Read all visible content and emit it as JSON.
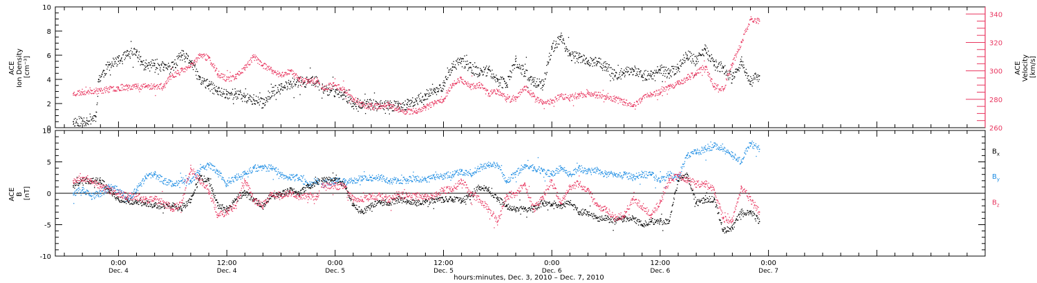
{
  "chart_data": [
    {
      "type": "scatter",
      "panel": "top",
      "ylabel_left": [
        "ACE",
        "Ion Density",
        "[cm⁻³]"
      ],
      "ylabel_right": [
        "ACE",
        "Velocity",
        "[km/s]"
      ],
      "ylim_left": [
        0,
        10
      ],
      "ylim_right": [
        260,
        345
      ],
      "yticks_left": [
        "0",
        "2",
        "4",
        "6",
        "8",
        "10"
      ],
      "yticks_right": [
        "260",
        "280",
        "300",
        "320",
        "340"
      ],
      "colors": {
        "density": "#000000",
        "velocity": "#e8345e"
      },
      "series": [
        {
          "key": "density",
          "axis": "left",
          "x": [
            -5,
            -3.5,
            -2.5,
            -2.2,
            -1,
            0,
            1,
            2,
            2.5,
            3,
            4,
            5,
            6,
            7,
            8,
            9,
            10,
            11,
            12,
            13,
            14,
            15,
            16,
            17,
            18,
            19,
            20,
            21,
            22,
            22.5,
            24,
            25,
            26,
            27,
            28,
            29,
            30,
            31,
            32,
            33,
            34,
            35,
            36,
            37,
            38,
            39,
            40,
            41,
            42,
            43,
            44,
            45,
            46,
            47,
            48,
            49,
            50,
            51,
            52,
            53,
            54,
            55,
            56,
            57,
            58,
            59,
            60,
            61,
            62,
            63,
            64,
            65,
            66,
            67,
            68,
            69,
            70,
            71
          ],
          "y": [
            0.5,
            0.6,
            0.9,
            4.0,
            5.2,
            5.5,
            6.0,
            6.3,
            5.5,
            5.0,
            5.3,
            5.0,
            5.0,
            6.0,
            5.5,
            4.0,
            3.5,
            3.0,
            2.8,
            2.8,
            2.5,
            2.3,
            2.0,
            3.0,
            3.2,
            3.6,
            3.8,
            3.8,
            3.8,
            3.2,
            3.0,
            2.7,
            2.0,
            2.0,
            1.9,
            1.8,
            1.8,
            1.8,
            1.9,
            2.2,
            2.7,
            3.0,
            3.5,
            5.0,
            5.5,
            5.0,
            4.5,
            4.8,
            4.0,
            3.5,
            5.5,
            4.5,
            3.8,
            3.5,
            6.5,
            7.5,
            6.0,
            5.8,
            5.5,
            5.5,
            5.0,
            4.3,
            4.5,
            4.8,
            4.3,
            4.3,
            4.8,
            4.5,
            5.0,
            6.0,
            5.5,
            6.5,
            5.2,
            5.0,
            4.0,
            5.5,
            3.8,
            4.3
          ]
        },
        {
          "key": "velocity",
          "axis": "right",
          "x": [
            -5,
            -4,
            -3,
            -2,
            -1,
            0,
            1,
            2,
            3,
            4,
            5,
            6,
            7,
            8,
            9,
            10,
            11,
            12,
            13,
            14,
            15,
            16,
            17,
            18,
            19,
            20,
            21,
            22,
            22.5,
            24,
            25,
            26,
            27,
            28,
            29,
            30,
            31,
            32,
            33,
            34,
            35,
            36,
            37,
            38,
            39,
            40,
            41,
            42,
            43,
            44,
            45,
            46,
            47,
            48,
            49,
            50,
            51,
            52,
            53,
            54,
            55,
            56,
            57,
            58,
            59,
            60,
            61,
            62,
            63,
            64,
            65,
            66,
            67,
            68,
            69,
            70,
            71
          ],
          "y": [
            284,
            285,
            286,
            286,
            287,
            288,
            289,
            289,
            289,
            289,
            289,
            297,
            300,
            303,
            311,
            309,
            298,
            294,
            296,
            302,
            310,
            304,
            300,
            297,
            300,
            294,
            293,
            293,
            288,
            290,
            287,
            280,
            276,
            275,
            275,
            276,
            273,
            271,
            272,
            274,
            277,
            280,
            291,
            294,
            289,
            290,
            284,
            286,
            280,
            280,
            289,
            282,
            277,
            279,
            282,
            281,
            283,
            284,
            283,
            282,
            280,
            278,
            276,
            280,
            284,
            285,
            289,
            291,
            295,
            298,
            303,
            289,
            287,
            305,
            320,
            336,
            335
          ]
        }
      ]
    },
    {
      "type": "scatter",
      "panel": "bottom",
      "ylabel": [
        "ACE",
        "B",
        "[nT]"
      ],
      "ylim": [
        -10,
        10
      ],
      "yticks": [
        "-10",
        "-5",
        "0",
        "5",
        "10"
      ],
      "zero_line": true,
      "legend": {
        "position": "right",
        "items": [
          {
            "key": "bx",
            "text": "B",
            "sub": "x"
          },
          {
            "key": "by",
            "text": "B",
            "sub": "y"
          },
          {
            "key": "bz",
            "text": "B",
            "sub": "z"
          }
        ]
      },
      "colors": {
        "bx": "#000000",
        "by": "#1c8ce3",
        "bz": "#e8345e"
      },
      "series": [
        {
          "key": "bx",
          "x": [
            -5,
            -4,
            -3,
            -2,
            -1,
            0,
            1,
            2,
            3,
            4,
            5,
            6,
            7,
            8,
            9,
            10,
            11,
            12,
            13,
            14,
            15,
            16,
            17,
            18,
            19,
            20,
            21,
            22,
            22.5,
            24,
            25,
            26,
            27,
            28,
            29,
            30,
            31,
            32,
            33,
            34,
            35,
            36,
            37,
            38,
            39,
            40,
            41,
            42,
            43,
            44,
            45,
            46,
            47,
            48,
            49,
            50,
            51,
            52,
            53,
            54,
            55,
            56,
            57,
            58,
            59,
            60,
            61,
            62,
            63,
            64,
            65,
            66,
            67,
            68,
            69,
            70,
            71
          ],
          "y": [
            1.2,
            2.0,
            2.0,
            2.0,
            0.5,
            -1.0,
            -1.2,
            -1.5,
            -1.5,
            -2.0,
            -2.0,
            -2.0,
            -2.5,
            -1.0,
            2.5,
            2.0,
            -2.0,
            -2.5,
            -1.0,
            0.0,
            -1.0,
            -2.0,
            -0.5,
            -0.2,
            0.5,
            0.0,
            1.0,
            1.8,
            2.0,
            2.2,
            1.5,
            -2.0,
            -3.0,
            -2.0,
            -1.5,
            -1.5,
            -1.0,
            -1.2,
            -1.5,
            -1.5,
            -1.0,
            -1.0,
            -1.0,
            -1.2,
            -0.5,
            1.0,
            0.5,
            -1.0,
            -2.0,
            -2.5,
            -2.5,
            -2.5,
            -1.5,
            -2.0,
            -2.0,
            -1.5,
            -3.0,
            -3.0,
            -4.0,
            -4.0,
            -4.5,
            -4.0,
            -4.0,
            -5.0,
            -4.5,
            -4.5,
            -4.5,
            2.0,
            3.0,
            -1.5,
            -1.0,
            -1.0,
            -6.0,
            -5.5,
            -3.0,
            -3.0,
            -4.5
          ]
        },
        {
          "key": "by",
          "x": [
            -5,
            -4,
            -3,
            -2,
            -1,
            0,
            1,
            2,
            3,
            4,
            5,
            6,
            7,
            8,
            9,
            10,
            11,
            12,
            13,
            14,
            15,
            16,
            17,
            18,
            19,
            20,
            21,
            22,
            22.5,
            24,
            25,
            26,
            27,
            28,
            29,
            30,
            31,
            32,
            33,
            34,
            35,
            36,
            37,
            38,
            39,
            40,
            41,
            42,
            43,
            44,
            45,
            46,
            47,
            48,
            49,
            50,
            51,
            52,
            53,
            54,
            55,
            56,
            57,
            58,
            59,
            60,
            61,
            62,
            63,
            64,
            65,
            66,
            67,
            68,
            69,
            70,
            71
          ],
          "y": [
            0.0,
            0.5,
            -0.5,
            0.0,
            1.0,
            0.5,
            -1.0,
            0.5,
            2.5,
            3.0,
            2.0,
            1.5,
            2.0,
            2.0,
            3.5,
            4.5,
            3.5,
            1.5,
            2.5,
            3.0,
            4.0,
            4.0,
            4.0,
            3.0,
            2.5,
            2.5,
            1.5,
            2.0,
            1.5,
            2.0,
            1.8,
            2.0,
            2.5,
            2.5,
            2.5,
            2.0,
            2.0,
            2.0,
            2.3,
            2.2,
            2.5,
            2.8,
            3.0,
            3.5,
            3.0,
            4.0,
            4.5,
            4.5,
            2.0,
            3.0,
            4.5,
            4.0,
            3.5,
            3.0,
            4.0,
            3.0,
            4.0,
            3.5,
            3.5,
            3.0,
            3.0,
            3.0,
            2.5,
            3.0,
            3.0,
            2.0,
            3.0,
            2.5,
            6.0,
            6.5,
            7.0,
            7.5,
            7.0,
            6.0,
            5.0,
            8.0,
            7.0
          ]
        },
        {
          "key": "bz",
          "x": [
            -5,
            -4,
            -3,
            -2,
            -1,
            0,
            1,
            2,
            3,
            4,
            5,
            6,
            7,
            8,
            9,
            10,
            11,
            12,
            13,
            14,
            15,
            16,
            17,
            18,
            19,
            20,
            21,
            22,
            22.5,
            24,
            25,
            26,
            27,
            28,
            29,
            30,
            31,
            32,
            33,
            34,
            35,
            36,
            37,
            38,
            39,
            40,
            41,
            42,
            43,
            44,
            45,
            46,
            47,
            48,
            49,
            50,
            51,
            52,
            53,
            54,
            55,
            56,
            57,
            58,
            59,
            60,
            61,
            62,
            63,
            64,
            65,
            66,
            67,
            68,
            69,
            70,
            71
          ],
          "y": [
            2.0,
            2.5,
            2.0,
            1.0,
            0.5,
            0.0,
            -0.5,
            -0.5,
            -1.0,
            -1.0,
            -1.5,
            -2.5,
            -1.5,
            4.0,
            2.0,
            0.5,
            -3.5,
            -3.0,
            -2.0,
            2.0,
            -1.0,
            -2.0,
            0.0,
            -0.5,
            0.0,
            -0.5,
            -0.5,
            -0.5,
            1.0,
            1.2,
            1.0,
            -1.0,
            -1.0,
            -0.5,
            -0.5,
            -1.0,
            -0.2,
            -0.5,
            -0.5,
            -0.5,
            -0.5,
            0.5,
            0.5,
            2.0,
            0.0,
            -1.0,
            -2.5,
            -4.5,
            -0.5,
            0.0,
            1.5,
            -2.5,
            -0.5,
            2.0,
            -1.5,
            1.0,
            1.5,
            0.5,
            -2.0,
            -2.5,
            -4.0,
            -3.5,
            -1.0,
            -2.0,
            -3.5,
            -1.5,
            2.0,
            3.0,
            2.0,
            1.5,
            1.5,
            0.5,
            -4.0,
            -4.5,
            1.0,
            -1.0,
            -3.0
          ]
        }
      ]
    }
  ],
  "x_axis": {
    "range_hours": [
      -7,
      96
    ],
    "ticks": [
      {
        "t": 0,
        "time": "0:00",
        "date": "Dec. 4"
      },
      {
        "t": 12,
        "time": "12:00",
        "date": "Dec. 4"
      },
      {
        "t": 24,
        "time": "0:00",
        "date": "Dec. 5"
      },
      {
        "t": 36,
        "time": "12:00",
        "date": "Dec. 5"
      },
      {
        "t": 48,
        "time": "0:00",
        "date": "Dec. 6"
      },
      {
        "t": 60,
        "time": "12:00",
        "date": "Dec. 6"
      },
      {
        "t": 72,
        "time": "0:00",
        "date": "Dec. 7"
      }
    ],
    "label": "hours:minutes, Dec.  3, 2010 – Dec.  7, 2010"
  }
}
